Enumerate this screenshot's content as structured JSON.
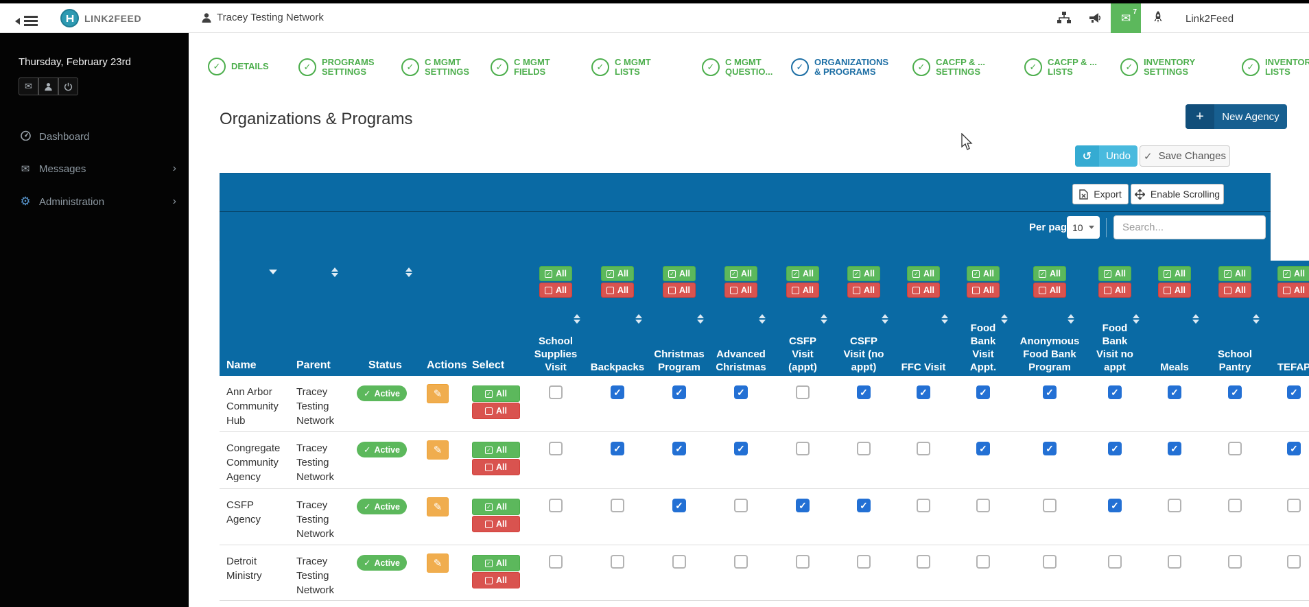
{
  "colors": {
    "panel_blue": "#0a6aa4",
    "green": "#5cb85c",
    "red": "#d9534f",
    "orange": "#f0ad4e",
    "checkbox_blue": "#2370d4",
    "undo_blue": "#49bade",
    "undo_blue_dark": "#35abd2",
    "new_agency_blue": "#175f90",
    "new_agency_blue_dark": "#114e7a",
    "step_green": "#4cae4c",
    "step_active_blue": "#1c6ea4"
  },
  "navbar": {
    "logo_text": "LINK2FEED",
    "network_name": "Tracey Testing Network",
    "mail_badge_count": "7",
    "brand_right": "Link2Feed"
  },
  "sidebar": {
    "date": "Thursday, February 23rd",
    "items": [
      {
        "label": "Dashboard",
        "icon": "gauge-icon",
        "has_chevron": false
      },
      {
        "label": "Messages",
        "icon": "envelope-icon",
        "has_chevron": true
      },
      {
        "label": "Administration",
        "icon": "gears-icon",
        "has_chevron": true
      }
    ]
  },
  "stepper": {
    "steps": [
      {
        "label": "DETAILS",
        "state": "complete"
      },
      {
        "label": "PROGRAMS\nSETTINGS",
        "state": "complete"
      },
      {
        "label": "C MGMT\nSETTINGS",
        "state": "complete"
      },
      {
        "label": "C MGMT\nFIELDS",
        "state": "complete"
      },
      {
        "label": "C MGMT\nLISTS",
        "state": "complete"
      },
      {
        "label": "C MGMT\nQUESTIO...",
        "state": "complete"
      },
      {
        "label": "ORGANIZATIONS\n& PROGRAMS",
        "state": "active"
      },
      {
        "label": "CACFP & ...\nSETTINGS",
        "state": "complete"
      },
      {
        "label": "CACFP & ...\nLISTS",
        "state": "complete"
      },
      {
        "label": "INVENTORY\nSETTINGS",
        "state": "complete"
      },
      {
        "label": "INVENTORY\nLISTS",
        "state": "complete"
      }
    ]
  },
  "page": {
    "title": "Organizations & Programs"
  },
  "actions": {
    "new_agency": "New Agency",
    "undo": "Undo",
    "save_changes": "Save Changes"
  },
  "table": {
    "toolbar": {
      "export": "Export",
      "enable_scrolling": "Enable Scrolling",
      "per_page_label": "Per page:",
      "per_page_value": "10",
      "search_placeholder": "Search..."
    },
    "select_all_label": "All",
    "fixed_columns": [
      "Name",
      "Parent",
      "Status",
      "Actions",
      "Select"
    ],
    "program_columns": [
      "School\nSupplies\nVisit",
      "Backpacks",
      "Christmas\nProgram",
      "Advanced\nChristmas",
      "CSFP\nVisit\n(appt)",
      "CSFP\nVisit (no\nappt)",
      "FFC Visit",
      "Food\nBank\nVisit\nAppt.",
      "Anonymous\nFood Bank\nProgram",
      "Food\nBank\nVisit no\nappt",
      "Meals",
      "School\nPantry",
      "TEFAP"
    ],
    "rows": [
      {
        "name": "Ann Arbor\nCommunity\nHub",
        "parent": "Tracey\nTesting\nNetwork",
        "status": "Active",
        "checks": [
          false,
          true,
          true,
          true,
          false,
          true,
          true,
          true,
          true,
          true,
          true,
          true,
          true
        ]
      },
      {
        "name": "Congregate\nCommunity\nAgency",
        "parent": "Tracey\nTesting\nNetwork",
        "status": "Active",
        "checks": [
          false,
          true,
          true,
          true,
          false,
          false,
          false,
          true,
          true,
          true,
          true,
          false,
          true
        ]
      },
      {
        "name": "CSFP\nAgency",
        "parent": "Tracey\nTesting\nNetwork",
        "status": "Active",
        "checks": [
          false,
          false,
          true,
          false,
          true,
          true,
          false,
          false,
          false,
          true,
          false,
          false,
          false
        ]
      },
      {
        "name": "Detroit\nMinistry",
        "parent": "Tracey\nTesting\nNetwork",
        "status": "Active",
        "checks": [
          false,
          false,
          false,
          false,
          false,
          false,
          false,
          false,
          false,
          false,
          false,
          false,
          false
        ]
      }
    ]
  }
}
